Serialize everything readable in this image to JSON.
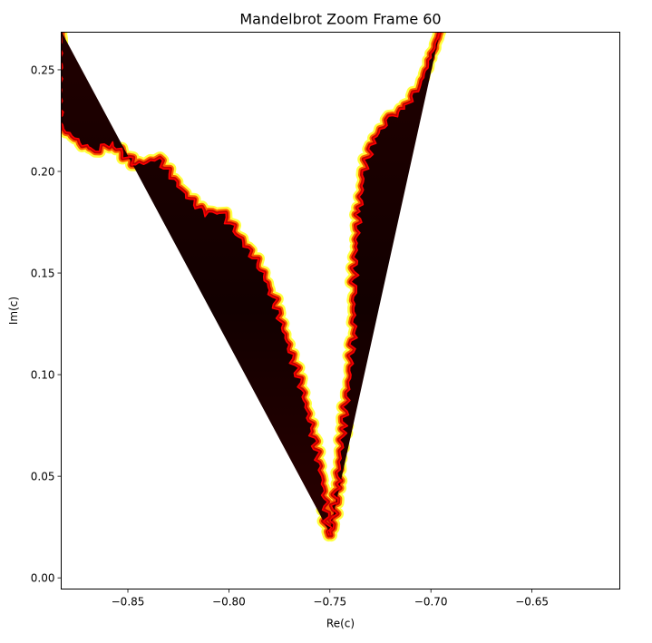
{
  "chart_data": {
    "type": "heatmap",
    "title": "Mandelbrot Zoom Frame 60",
    "xlabel": "Re(c)",
    "ylabel": "Im(c)",
    "xlim": [
      -0.883,
      -0.6065
    ],
    "ylim": [
      -0.0055,
      0.2685
    ],
    "xticks": [
      {
        "value": -0.85,
        "label": "−0.85"
      },
      {
        "value": -0.8,
        "label": "−0.80"
      },
      {
        "value": -0.75,
        "label": "−0.75"
      },
      {
        "value": -0.7,
        "label": "−0.70"
      },
      {
        "value": -0.65,
        "label": "−0.65"
      }
    ],
    "yticks": [
      {
        "value": 0.0,
        "label": "0.00"
      },
      {
        "value": 0.05,
        "label": "0.05"
      },
      {
        "value": 0.1,
        "label": "0.10"
      },
      {
        "value": 0.15,
        "label": "0.15"
      },
      {
        "value": 0.2,
        "label": "0.20"
      },
      {
        "value": 0.25,
        "label": "0.25"
      }
    ],
    "colormap": "hot",
    "grid": false,
    "legend": "none",
    "background_color": "#ffffff",
    "boundary_color": "#ff0000",
    "interior_color": "#0d0000",
    "region_colors": {
      "escape": "#ffffff",
      "boundary_outer": "#ffff40",
      "boundary_mid": "#ff6000",
      "boundary_inner": "#c00000",
      "interior": "#0d0000"
    },
    "boundary_left": [
      {
        "x": -0.883,
        "y": 0.269
      },
      {
        "x": -0.883,
        "y": 0.222
      },
      {
        "x": -0.868,
        "y": 0.21
      },
      {
        "x": -0.858,
        "y": 0.214
      },
      {
        "x": -0.846,
        "y": 0.203
      },
      {
        "x": -0.835,
        "y": 0.206
      },
      {
        "x": -0.823,
        "y": 0.19
      },
      {
        "x": -0.812,
        "y": 0.179
      },
      {
        "x": -0.804,
        "y": 0.18
      },
      {
        "x": -0.795,
        "y": 0.168
      },
      {
        "x": -0.785,
        "y": 0.153
      },
      {
        "x": -0.779,
        "y": 0.14
      },
      {
        "x": -0.772,
        "y": 0.118
      },
      {
        "x": -0.765,
        "y": 0.096
      },
      {
        "x": -0.759,
        "y": 0.072
      },
      {
        "x": -0.754,
        "y": 0.048
      },
      {
        "x": -0.7505,
        "y": 0.021
      }
    ],
    "boundary_right": [
      {
        "x": -0.7495,
        "y": 0.021
      },
      {
        "x": -0.746,
        "y": 0.048
      },
      {
        "x": -0.743,
        "y": 0.075
      },
      {
        "x": -0.74,
        "y": 0.1
      },
      {
        "x": -0.738,
        "y": 0.122
      },
      {
        "x": -0.738,
        "y": 0.142
      },
      {
        "x": -0.737,
        "y": 0.163
      },
      {
        "x": -0.735,
        "y": 0.182
      },
      {
        "x": -0.733,
        "y": 0.2
      },
      {
        "x": -0.728,
        "y": 0.216
      },
      {
        "x": -0.72,
        "y": 0.226
      },
      {
        "x": -0.712,
        "y": 0.232
      },
      {
        "x": -0.705,
        "y": 0.243
      },
      {
        "x": -0.7,
        "y": 0.256
      },
      {
        "x": -0.6955,
        "y": 0.269
      }
    ]
  }
}
